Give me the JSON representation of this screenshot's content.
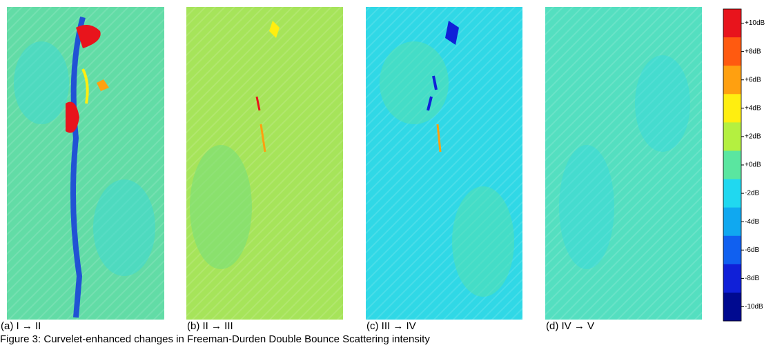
{
  "figure": {
    "panels": [
      {
        "label": "(a) I → II"
      },
      {
        "label": "(b) II → III"
      },
      {
        "label": "(c) III → IV"
      },
      {
        "label": "(d) IV → V"
      }
    ],
    "colorbar": {
      "ticks": [
        {
          "label": "+10dB",
          "color": "#e8141c"
        },
        {
          "label": "+8dB",
          "color": "#ff5a10"
        },
        {
          "label": "+6dB",
          "color": "#ffa010"
        },
        {
          "label": "+4dB",
          "color": "#ffee10"
        },
        {
          "label": "+2dB",
          "color": "#b4f040"
        },
        {
          "label": "+0dB",
          "color": "#5ae6a0"
        },
        {
          "label": "-2dB",
          "color": "#20d8f0"
        },
        {
          "label": "-4dB",
          "color": "#10a8f0"
        },
        {
          "label": "-6dB",
          "color": "#1060f0"
        },
        {
          "label": "-8dB",
          "color": "#1020d8"
        },
        {
          "label": "-10dB",
          "color": "#000a90"
        }
      ]
    },
    "caption": "Figure 3: Curvelet-enhanced changes in Freeman-Durden Double Bounce Scattering intensity"
  }
}
